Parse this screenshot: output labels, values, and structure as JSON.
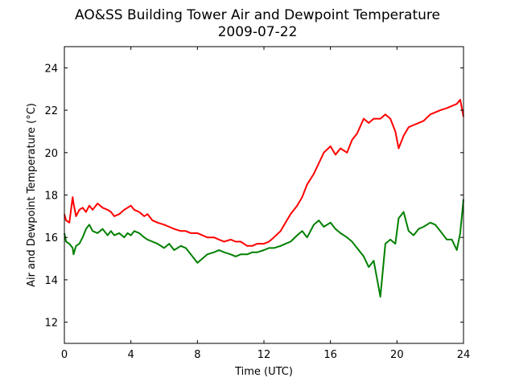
{
  "chart_data": {
    "type": "line",
    "title": "AO&SS Building Tower Air and Dewpoint Temperature",
    "subtitle": "2009-07-22",
    "xlabel": "Time (UTC)",
    "ylabel": "Air and Dewpoint Temperature (°C)",
    "xlim": [
      0,
      24
    ],
    "ylim": [
      11,
      25
    ],
    "xticks": [
      0,
      4,
      8,
      12,
      16,
      20,
      24
    ],
    "yticks": [
      12,
      14,
      16,
      18,
      20,
      22,
      24
    ],
    "grid": false,
    "x": [
      0.0,
      0.1,
      0.3,
      0.5,
      0.55,
      0.7,
      0.9,
      1.1,
      1.3,
      1.5,
      1.7,
      2.0,
      2.3,
      2.6,
      2.8,
      3.0,
      3.3,
      3.6,
      3.8,
      4.0,
      4.2,
      4.5,
      4.8,
      5.0,
      5.3,
      5.6,
      6.0,
      6.3,
      6.6,
      7.0,
      7.3,
      7.6,
      8.0,
      8.3,
      8.6,
      9.0,
      9.3,
      9.6,
      10.0,
      10.3,
      10.6,
      11.0,
      11.3,
      11.6,
      12.0,
      12.3,
      12.6,
      13.0,
      13.3,
      13.6,
      14.0,
      14.3,
      14.6,
      15.0,
      15.3,
      15.6,
      16.0,
      16.3,
      16.6,
      17.0,
      17.3,
      17.6,
      18.0,
      18.3,
      18.6,
      19.0,
      19.3,
      19.6,
      19.9,
      20.1,
      20.4,
      20.7,
      21.0,
      21.3,
      21.6,
      22.0,
      22.3,
      22.6,
      23.0,
      23.3,
      23.6,
      23.8,
      24.0
    ],
    "series": [
      {
        "color": "#ff0000",
        "values": [
          17.1,
          16.8,
          16.7,
          17.9,
          17.6,
          17.0,
          17.3,
          17.4,
          17.2,
          17.5,
          17.3,
          17.6,
          17.4,
          17.3,
          17.2,
          17.0,
          17.1,
          17.3,
          17.4,
          17.5,
          17.3,
          17.2,
          17.0,
          17.1,
          16.8,
          16.7,
          16.6,
          16.5,
          16.4,
          16.3,
          16.3,
          16.2,
          16.2,
          16.1,
          16.0,
          16.0,
          15.9,
          15.8,
          15.9,
          15.8,
          15.8,
          15.6,
          15.6,
          15.7,
          15.7,
          15.8,
          16.0,
          16.3,
          16.7,
          17.1,
          17.5,
          17.9,
          18.5,
          19.0,
          19.5,
          20.0,
          20.3,
          19.9,
          20.2,
          20.0,
          20.6,
          20.9,
          21.6,
          21.4,
          21.6,
          21.6,
          21.8,
          21.6,
          21.0,
          20.2,
          20.8,
          21.2,
          21.3,
          21.4,
          21.5,
          21.8,
          21.9,
          22.0,
          22.1,
          22.2,
          22.3,
          22.5,
          21.7
        ]
      },
      {
        "color": "#008000",
        "values": [
          16.2,
          15.8,
          15.7,
          15.5,
          15.2,
          15.6,
          15.7,
          16.0,
          16.4,
          16.6,
          16.3,
          16.2,
          16.4,
          16.1,
          16.3,
          16.1,
          16.2,
          16.0,
          16.2,
          16.1,
          16.3,
          16.2,
          16.0,
          15.9,
          15.8,
          15.7,
          15.5,
          15.7,
          15.4,
          15.6,
          15.5,
          15.2,
          14.8,
          15.0,
          15.2,
          15.3,
          15.4,
          15.3,
          15.2,
          15.1,
          15.2,
          15.2,
          15.3,
          15.3,
          15.4,
          15.5,
          15.5,
          15.6,
          15.7,
          15.8,
          16.1,
          16.3,
          16.0,
          16.6,
          16.8,
          16.5,
          16.7,
          16.4,
          16.2,
          16.0,
          15.8,
          15.5,
          15.1,
          14.6,
          14.9,
          13.2,
          15.7,
          15.9,
          15.7,
          16.9,
          17.2,
          16.3,
          16.1,
          16.4,
          16.5,
          16.7,
          16.6,
          16.3,
          15.9,
          15.9,
          15.4,
          16.2,
          17.8
        ]
      }
    ]
  }
}
